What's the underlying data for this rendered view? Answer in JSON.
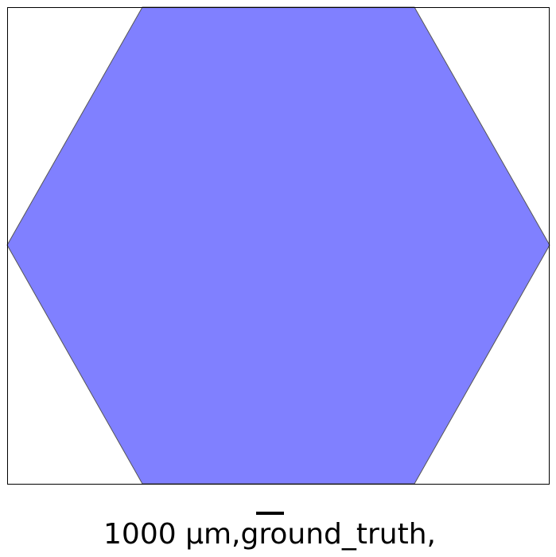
{
  "caption": {
    "text": "1000 µm,ground_truth,"
  },
  "colors": {
    "background": "#ffffff",
    "frame": "#000000",
    "shape_fill": "#8080ff",
    "shape_stroke": "#555555",
    "scale_bar": "#000000",
    "caption_text": "#000000"
  },
  "shape": {
    "type": "hexagon",
    "orientation": "flat-top"
  }
}
